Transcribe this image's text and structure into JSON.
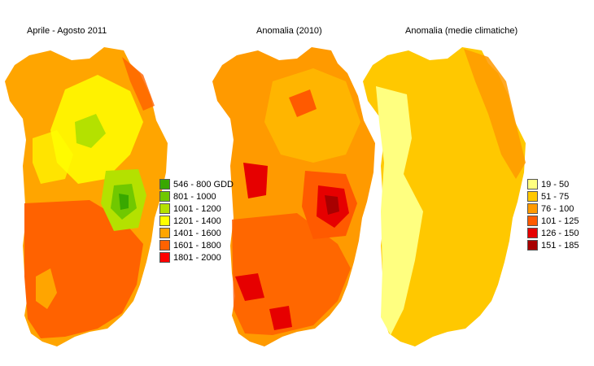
{
  "panels": [
    {
      "title": "Aprile - Agosto 2011"
    },
    {
      "title": "Anomalia (2010)"
    },
    {
      "title": "Anomalia (medie climatiche)"
    }
  ],
  "legend_gdd": [
    {
      "label": "546 - 800 GDD",
      "color": "#38a800"
    },
    {
      "label": "801 - 1000",
      "color": "#70c800"
    },
    {
      "label": "1001 - 1200",
      "color": "#b4e100"
    },
    {
      "label": "1201 - 1400",
      "color": "#ffff00"
    },
    {
      "label": "1401 - 1600",
      "color": "#ffa500"
    },
    {
      "label": "1601 - 1800",
      "color": "#ff6200"
    },
    {
      "label": "1801 - 2000",
      "color": "#ff0000"
    }
  ],
  "legend_anomaly": [
    {
      "label": "19 - 50",
      "color": "#ffff80"
    },
    {
      "label": "51 - 75",
      "color": "#ffc800"
    },
    {
      "label": "76 - 100",
      "color": "#ff9a00"
    },
    {
      "label": "101 - 125",
      "color": "#ff5a00"
    },
    {
      "label": "126 - 150",
      "color": "#e60000"
    },
    {
      "label": "151 - 185",
      "color": "#a80000"
    }
  ]
}
